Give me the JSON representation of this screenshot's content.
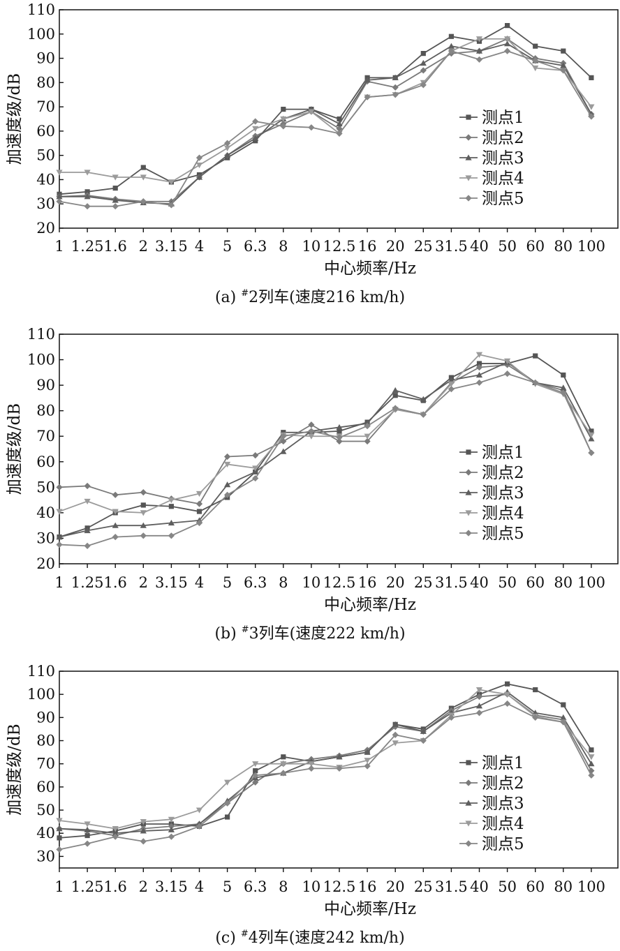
{
  "colors": {
    "series": [
      "#555555",
      "#7a7a7a",
      "#5e5e5e",
      "#9b9b9b",
      "#868686"
    ],
    "axis": "#111111"
  },
  "chart_data": [
    {
      "type": "line",
      "caption": {
        "prefix": "(a) ",
        "sup": "#",
        "rest": "2列车(速度216 km/h)"
      },
      "xlabel": "中心频率/Hz",
      "ylabel": "加速度级/dB",
      "ylim": [
        20,
        110
      ],
      "yticks": [
        "20",
        "30",
        "40",
        "50",
        "60",
        "70",
        "80",
        "90",
        "100",
        "110"
      ],
      "categories": [
        "1",
        "1.25",
        "1.6",
        "2",
        "3.15",
        "4",
        "5",
        "6.3",
        "8",
        "10",
        "12.5",
        "16",
        "20",
        "25",
        "31.5",
        "40",
        "50",
        "60",
        "80",
        "100"
      ],
      "legend_placement": "right-middle",
      "series": [
        {
          "name": "测点1",
          "marker": "square",
          "values": [
            34,
            35,
            36.5,
            45,
            39,
            42,
            49,
            56,
            69,
            69,
            65,
            82,
            82,
            92,
            99,
            97,
            103.5,
            95,
            93,
            82
          ]
        },
        {
          "name": "测点2",
          "marker": "diamond",
          "values": [
            33,
            33.5,
            32,
            31,
            31,
            41,
            50,
            58,
            63,
            68,
            61,
            80.5,
            78,
            85,
            92,
            93,
            98,
            90,
            88,
            67
          ]
        },
        {
          "name": "测点3",
          "marker": "triangle",
          "values": [
            33,
            33,
            31.5,
            30.5,
            30,
            41,
            50,
            57,
            65,
            69,
            63,
            81,
            82,
            88,
            95,
            93,
            96,
            89,
            87,
            67
          ]
        },
        {
          "name": "测点4",
          "marker": "tri-down",
          "values": [
            43,
            43,
            41,
            41,
            39,
            46,
            53,
            61,
            65,
            68,
            59,
            74,
            75,
            80,
            93,
            98,
            98,
            86,
            85,
            70
          ]
        },
        {
          "name": "测点5",
          "marker": "diamond",
          "values": [
            31,
            29,
            29,
            31,
            29.5,
            49,
            55,
            64,
            62,
            61.5,
            59,
            74,
            75,
            79,
            93,
            89.5,
            93,
            89,
            85,
            66
          ]
        }
      ]
    },
    {
      "type": "line",
      "caption": {
        "prefix": "(b) ",
        "sup": "#",
        "rest": "3列车(速度222 km/h)"
      },
      "xlabel": "中心频率/Hz",
      "ylabel": "加速度级/dB",
      "ylim": [
        20,
        110
      ],
      "yticks": [
        "20",
        "30",
        "40",
        "50",
        "60",
        "70",
        "80",
        "90",
        "100",
        "110"
      ],
      "categories": [
        "1",
        "1.25",
        "1.6",
        "2",
        "3.15",
        "4",
        "5",
        "6.3",
        "8",
        "10",
        "12.5",
        "16",
        "20",
        "25",
        "31.5",
        "40",
        "50",
        "60",
        "80",
        "100"
      ],
      "legend_placement": "right-middle",
      "series": [
        {
          "name": "测点1",
          "marker": "square",
          "values": [
            30.5,
            34,
            40,
            43,
            42.5,
            40.5,
            46,
            56,
            71.5,
            71.5,
            72,
            75.5,
            86,
            84,
            93,
            98.5,
            98.5,
            101.5,
            94,
            72
          ]
        },
        {
          "name": "测点2",
          "marker": "diamond",
          "values": [
            50,
            50.5,
            47,
            48,
            45.5,
            43.5,
            62,
            62.5,
            68,
            74.5,
            68,
            68,
            80.5,
            78.5,
            91,
            97,
            98,
            91,
            88,
            63.5
          ]
        },
        {
          "name": "测点3",
          "marker": "triangle",
          "values": [
            30.5,
            33,
            35,
            35,
            36,
            37,
            51,
            56,
            64,
            72,
            73.5,
            75,
            88,
            84.5,
            92,
            94,
            99,
            91,
            89,
            69
          ]
        },
        {
          "name": "测点4",
          "marker": "tri-down",
          "values": [
            40.5,
            44.5,
            40.5,
            40,
            45,
            47.5,
            59,
            57.5,
            70.5,
            70,
            70,
            70,
            80.5,
            78.5,
            90.5,
            102,
            99.5,
            90.5,
            86.5,
            70.5
          ]
        },
        {
          "name": "测点5",
          "marker": "diamond",
          "values": [
            27.5,
            27,
            30.5,
            31,
            31,
            36,
            47,
            53.5,
            70,
            72,
            69.5,
            74,
            81,
            78.5,
            88.5,
            91,
            94.5,
            91,
            87,
            63.5
          ]
        }
      ]
    },
    {
      "type": "line",
      "caption": {
        "prefix": "(c) ",
        "sup": "#",
        "rest": "4列车(速度242 km/h)"
      },
      "xlabel": "中心频率/Hz",
      "ylabel": "加速度级/dB",
      "ylim": [
        25,
        110
      ],
      "yticks": [
        "30",
        "40",
        "50",
        "60",
        "70",
        "80",
        "90",
        "100",
        "110"
      ],
      "categories": [
        "1",
        "1.25",
        "1.6",
        "2",
        "3.15",
        "4",
        "5",
        "6.3",
        "8",
        "10",
        "12.5",
        "16",
        "20",
        "25",
        "31.5",
        "40",
        "50",
        "60",
        "80",
        "100"
      ],
      "legend_placement": "right-middle",
      "series": [
        {
          "name": "测点1",
          "marker": "square",
          "values": [
            38,
            39,
            41,
            44,
            44,
            43,
            47,
            67,
            73,
            71,
            73,
            75,
            87,
            85,
            94,
            100,
            104.5,
            102,
            95.5,
            76
          ]
        },
        {
          "name": "测点2",
          "marker": "diamond",
          "values": [
            42,
            41,
            39,
            42,
            43,
            44,
            53,
            62,
            70,
            72,
            73.5,
            76,
            86,
            84,
            93,
            99,
            100,
            91,
            89,
            67
          ]
        },
        {
          "name": "测点3",
          "marker": "triangle",
          "values": [
            42,
            41.5,
            40,
            41,
            41.5,
            44,
            54,
            64,
            66,
            71,
            73,
            75,
            87,
            84,
            92,
            95,
            101,
            92,
            90,
            70
          ]
        },
        {
          "name": "测点4",
          "marker": "tri-down",
          "values": [
            45.5,
            44,
            42,
            45,
            46,
            50,
            62,
            70,
            70,
            70,
            68.5,
            71.5,
            79,
            80,
            91,
            102,
            100,
            90.5,
            88,
            73
          ]
        },
        {
          "name": "测点5",
          "marker": "diamond",
          "values": [
            33,
            35.5,
            38.5,
            36.5,
            38.5,
            43,
            53,
            65,
            66,
            68,
            68,
            69,
            82.5,
            80,
            90,
            92,
            96,
            90,
            88,
            65
          ]
        }
      ]
    }
  ]
}
